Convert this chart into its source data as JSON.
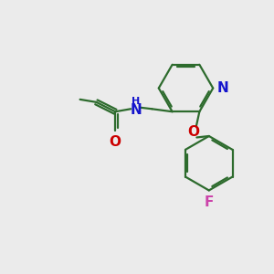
{
  "background_color": "#ebebeb",
  "bond_color": "#2d6b2d",
  "N_color": "#1414cc",
  "O_color": "#cc0000",
  "F_color": "#cc44aa",
  "line_width": 1.6,
  "figsize": [
    3.0,
    3.0
  ],
  "dpi": 100,
  "xlim": [
    0,
    10
  ],
  "ylim": [
    0,
    10
  ]
}
